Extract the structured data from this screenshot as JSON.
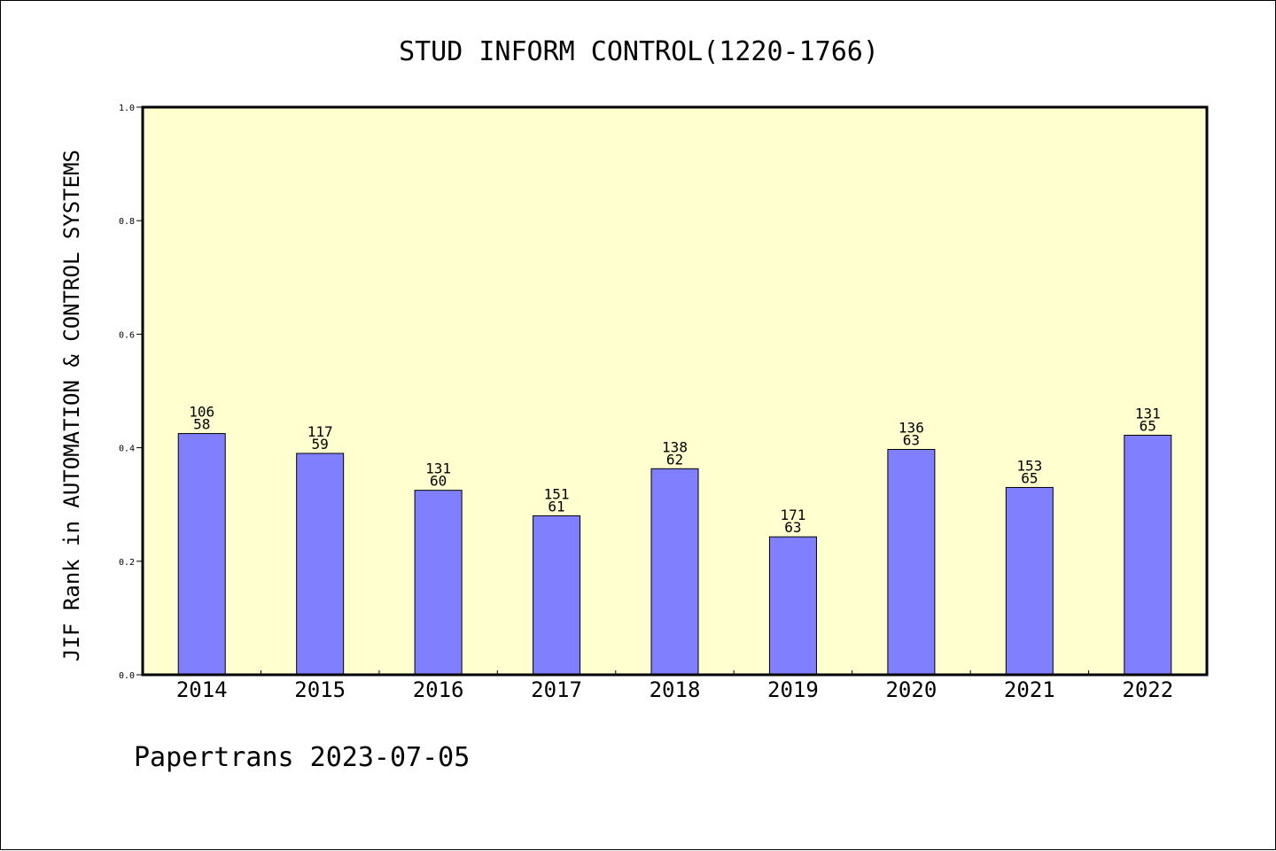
{
  "chart_data": {
    "type": "bar",
    "title": "STUD INFORM CONTROL(1220-1766)",
    "ylabel": "JIF Rank in AUTOMATION & CONTROL SYSTEMS",
    "xlabel": "",
    "ylim": [
      0,
      1.0
    ],
    "yticks": [
      "0.0",
      "0.2",
      "0.4",
      "0.6",
      "0.8",
      "1.0"
    ],
    "grid": false,
    "categories": [
      "2014",
      "2015",
      "2016",
      "2017",
      "2018",
      "2019",
      "2020",
      "2021",
      "2022"
    ],
    "values": [
      0.425,
      0.39,
      0.325,
      0.28,
      0.363,
      0.243,
      0.397,
      0.33,
      0.422
    ],
    "labels_top": [
      "106",
      "117",
      "131",
      "151",
      "138",
      "171",
      "136",
      "153",
      "131"
    ],
    "labels_bottom": [
      "58",
      "59",
      "60",
      "61",
      "62",
      "63",
      "63",
      "65",
      "65"
    ],
    "colors": {
      "plot_bg": "#ffffd0",
      "bar": "#8080ff",
      "bar_stroke": "#000000"
    }
  },
  "footer": "Papertrans 2023-07-05"
}
